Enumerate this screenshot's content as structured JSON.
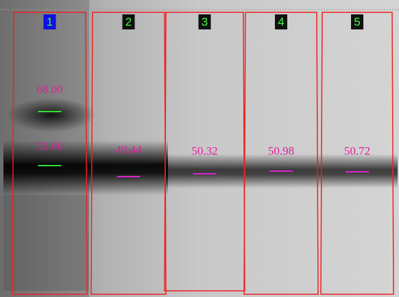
{
  "lanes": [
    {
      "label": "1",
      "bands": [
        "68.00",
        "52.06"
      ]
    },
    {
      "label": "2",
      "bands": [
        "49.44"
      ]
    },
    {
      "label": "3",
      "bands": [
        "50.32"
      ]
    },
    {
      "label": "4",
      "bands": [
        "50.98"
      ]
    },
    {
      "label": "5",
      "bands": [
        "50.72"
      ]
    }
  ]
}
